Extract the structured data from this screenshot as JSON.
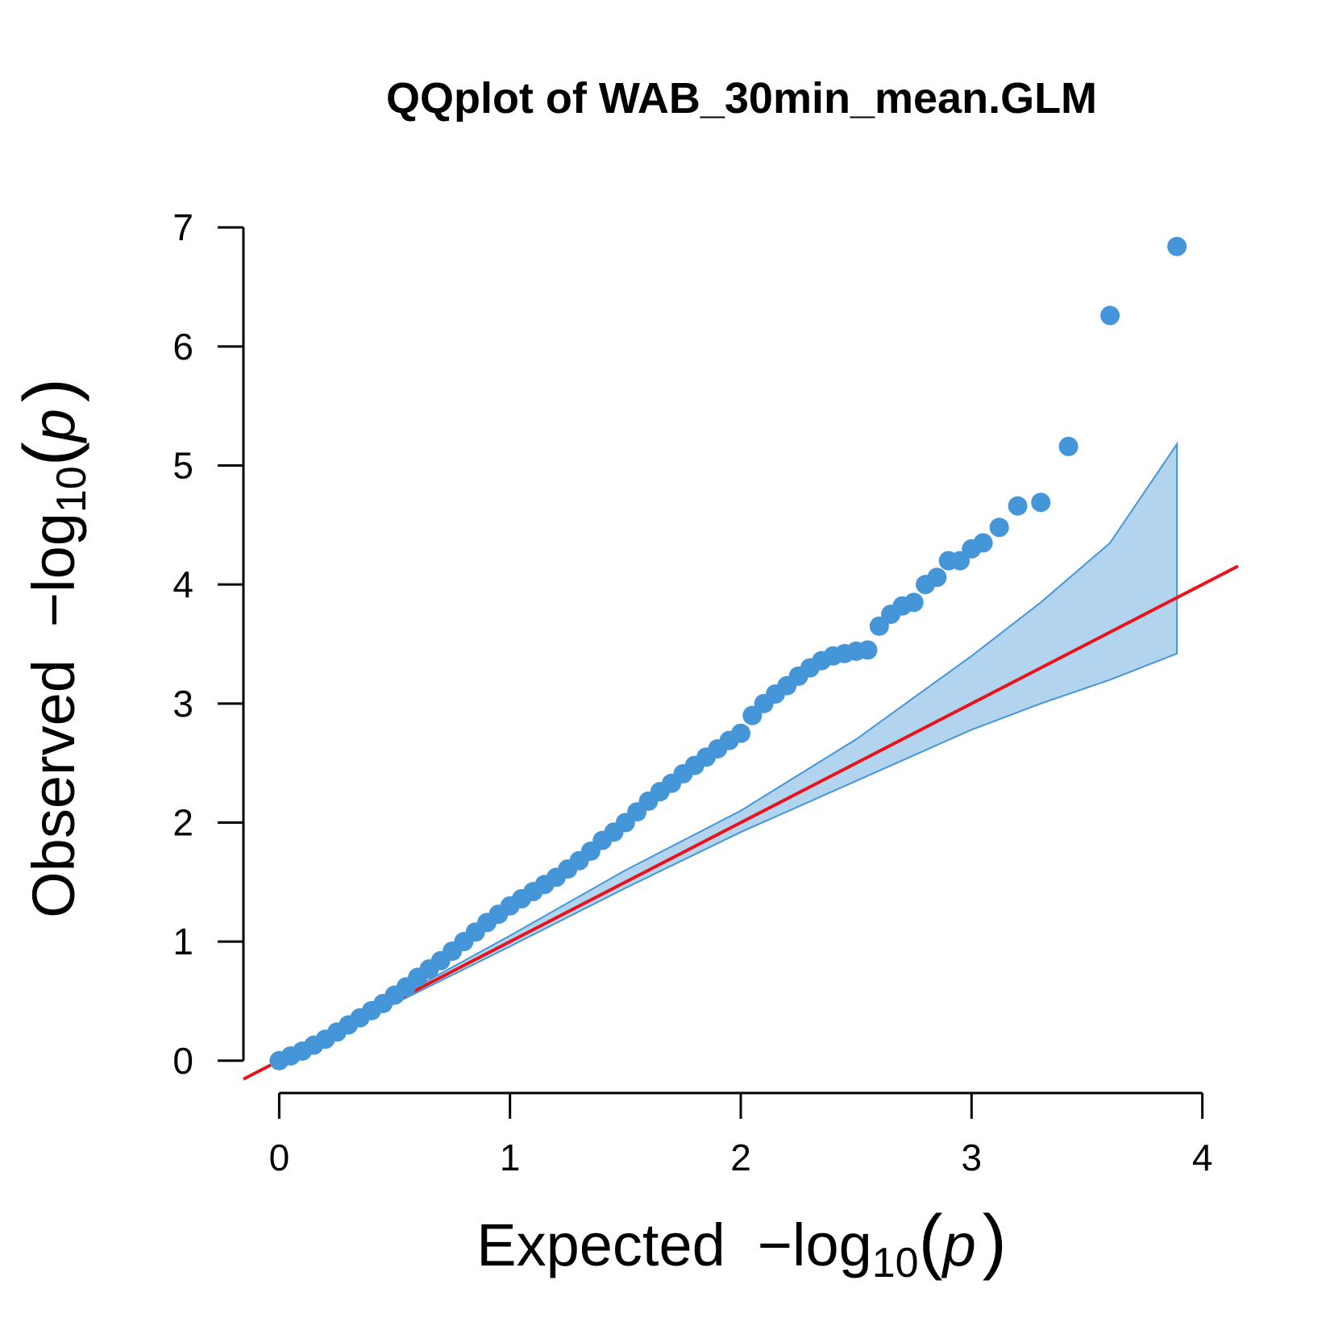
{
  "chart_data": {
    "type": "scatter",
    "title": "QQplot of WAB_30min_mean.GLM",
    "x_label": {
      "word": "Expected",
      "minus_log": "−log",
      "sub": "10",
      "open": "(",
      "p": "p",
      "close": ")"
    },
    "y_label": {
      "word": "Observed",
      "minus_log": "−log",
      "sub": "10",
      "open": "(",
      "p": "p",
      "close": ")"
    },
    "xlim": [
      -0.155,
      4.155
    ],
    "ylim": [
      -0.15,
      7.15
    ],
    "xticks": [
      0,
      1,
      2,
      3,
      4
    ],
    "yticks": [
      0,
      1,
      2,
      3,
      4,
      5,
      6,
      7
    ],
    "color": "#4596d8",
    "x": [
      0,
      0.05,
      0.1,
      0.15,
      0.2,
      0.25,
      0.3,
      0.35,
      0.4,
      0.45,
      0.5,
      0.55,
      0.6,
      0.65,
      0.7,
      0.75,
      0.8,
      0.85,
      0.9,
      0.95,
      1.0,
      1.05,
      1.1,
      1.15,
      1.2,
      1.25,
      1.3,
      1.35,
      1.4,
      1.45,
      1.5,
      1.55,
      1.6,
      1.65,
      1.7,
      1.75,
      1.8,
      1.85,
      1.9,
      1.95,
      2.0,
      2.05,
      2.1,
      2.15,
      2.2,
      2.25,
      2.3,
      2.35,
      2.4,
      2.45,
      2.5,
      2.55,
      2.6,
      2.65,
      2.7,
      2.75,
      2.8,
      2.85,
      2.9,
      2.95,
      3.0,
      3.05,
      3.12,
      3.2,
      3.3,
      3.42,
      3.6,
      3.89
    ],
    "values": [
      0,
      0.04,
      0.08,
      0.13,
      0.18,
      0.24,
      0.3,
      0.36,
      0.42,
      0.48,
      0.55,
      0.62,
      0.7,
      0.77,
      0.84,
      0.92,
      1.0,
      1.08,
      1.16,
      1.23,
      1.3,
      1.36,
      1.42,
      1.48,
      1.54,
      1.61,
      1.68,
      1.76,
      1.85,
      1.92,
      2.0,
      2.09,
      2.18,
      2.26,
      2.33,
      2.41,
      2.48,
      2.55,
      2.62,
      2.69,
      2.75,
      2.9,
      3.0,
      3.08,
      3.15,
      3.23,
      3.3,
      3.36,
      3.4,
      3.42,
      3.44,
      3.45,
      3.65,
      3.75,
      3.82,
      3.85,
      4.0,
      4.06,
      4.2,
      4.2,
      4.3,
      4.35,
      4.48,
      4.66,
      4.69,
      5.16,
      6.26,
      6.84
    ],
    "band": {
      "color": "#b3d4ee",
      "edge": "#4596d8",
      "x": [
        0,
        0.5,
        1,
        1.5,
        2,
        2.5,
        3,
        3.3,
        3.6,
        3.89
      ],
      "upper": [
        0,
        0.52,
        1.05,
        1.6,
        2.1,
        2.7,
        3.4,
        3.85,
        4.35,
        5.18
      ],
      "lower": [
        0,
        0.48,
        0.96,
        1.45,
        1.92,
        2.35,
        2.78,
        3.0,
        3.2,
        3.42
      ]
    },
    "reference_line": {
      "color": "#e8141c",
      "x": [
        -0.155,
        4.155
      ],
      "values": [
        -0.155,
        4.155
      ]
    }
  }
}
